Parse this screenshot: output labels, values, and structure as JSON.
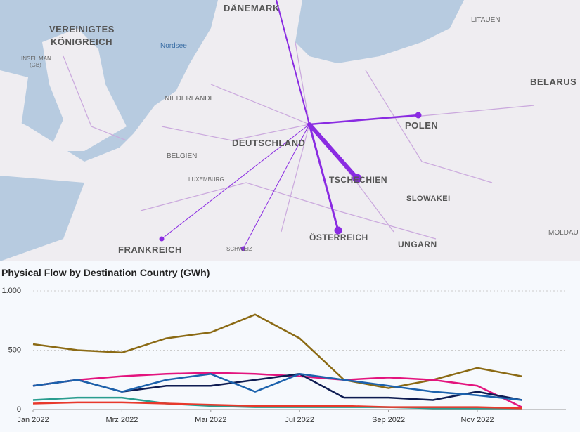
{
  "map": {
    "labels": [
      "DÄNEMARK",
      "VEREINIGTES",
      "KÖNIGREICH",
      "INSEL MAN",
      "(GB)",
      "Nordsee",
      "NIEDERLANDE",
      "BELGIEN",
      "LUXEMBURG",
      "DEUTSCHLAND",
      "FRANKREICH",
      "SCHWEIZ",
      "ÖSTERREICH",
      "TSCHECHIEN",
      "POLEN",
      "SLOWAKEI",
      "UNGARN",
      "LITAUEN",
      "BELARUS",
      "MOLDAU"
    ]
  },
  "chart_data": {
    "type": "line",
    "title": "Physical Flow by Destination Country (GWh)",
    "x": [
      "2022-01",
      "2022-02",
      "2022-03",
      "2022-04",
      "2022-05",
      "2022-06",
      "2022-07",
      "2022-08",
      "2022-09",
      "2022-10",
      "2022-11",
      "2022-12"
    ],
    "xticks": [
      {
        "value": "2022-01",
        "label": "Jan 2022"
      },
      {
        "value": "2022-03",
        "label": "Mrz 2022"
      },
      {
        "value": "2022-05",
        "label": "Mai 2022"
      },
      {
        "value": "2022-07",
        "label": "Jul 2022"
      },
      {
        "value": "2022-09",
        "label": "Sep 2022"
      },
      {
        "value": "2022-11",
        "label": "Nov 2022"
      }
    ],
    "ylim": [
      0,
      1000
    ],
    "yticks": [
      0,
      500,
      {
        "value": 1000,
        "label": "1.000"
      }
    ],
    "grid": true,
    "series": [
      {
        "color": "#8b6a14",
        "values": [
          550,
          500,
          480,
          600,
          650,
          800,
          600,
          250,
          180,
          250,
          350,
          280
        ]
      },
      {
        "color": "#e3147e",
        "values": [
          200,
          250,
          280,
          300,
          310,
          300,
          280,
          250,
          270,
          250,
          200,
          20
        ]
      },
      {
        "color": "#0e1c52",
        "values": [
          200,
          250,
          150,
          200,
          200,
          250,
          300,
          100,
          100,
          80,
          150,
          80
        ]
      },
      {
        "color": "#1c62ad",
        "values": [
          200,
          250,
          150,
          250,
          300,
          150,
          300,
          250,
          200,
          150,
          120,
          80
        ]
      },
      {
        "color": "#2a9d8f",
        "values": [
          80,
          100,
          100,
          50,
          30,
          20,
          20,
          20,
          20,
          10,
          10,
          10
        ]
      },
      {
        "color": "#e8392c",
        "values": [
          50,
          60,
          60,
          50,
          40,
          30,
          30,
          30,
          20,
          20,
          20,
          10
        ]
      }
    ]
  }
}
